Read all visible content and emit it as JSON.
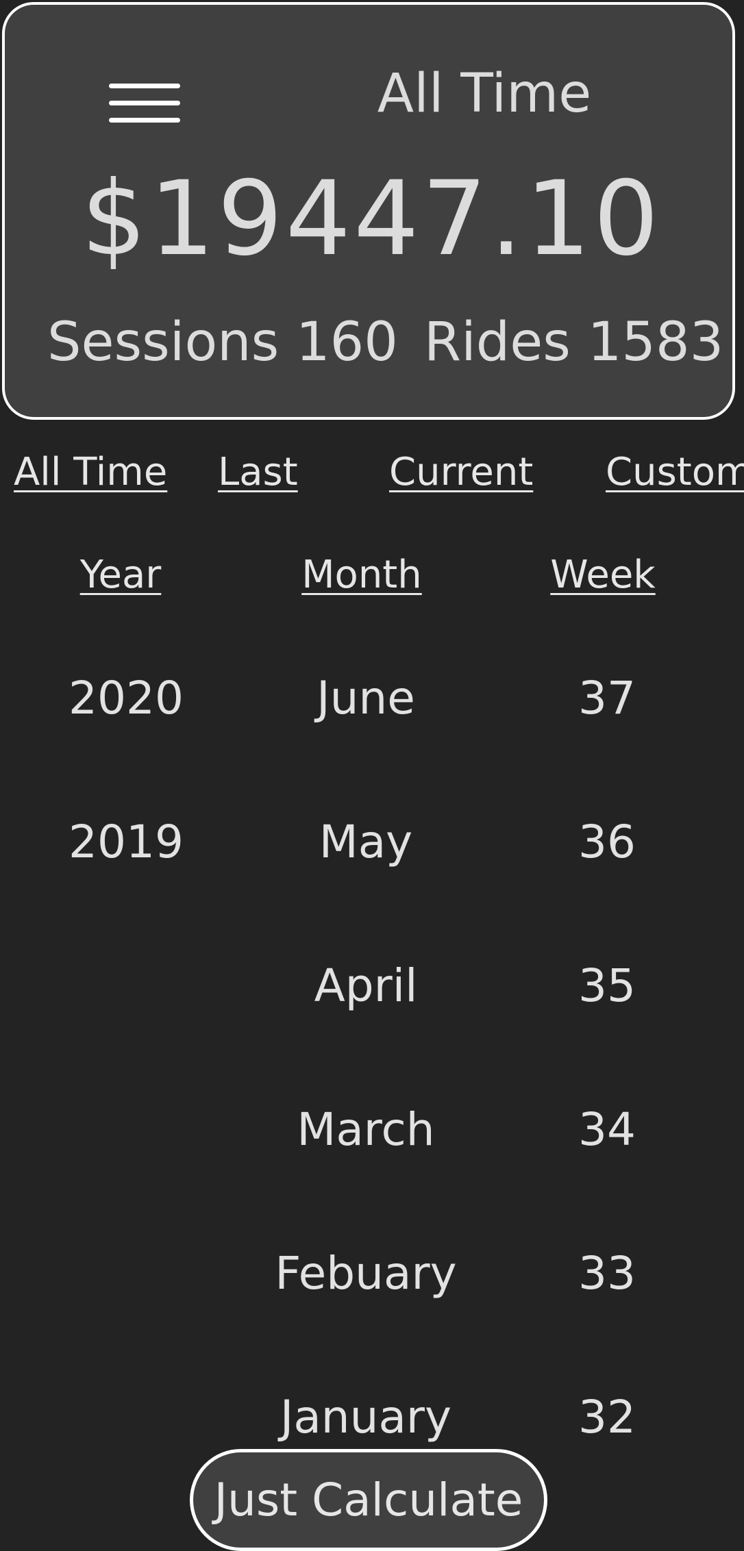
{
  "header": {
    "menu_icon": "hamburger-menu-icon",
    "period_title": "All Time",
    "total_amount": "$19447.10",
    "sessions_label": "Sessions 160",
    "rides_label": "Rides 1583"
  },
  "tabs": [
    {
      "label": "All Time"
    },
    {
      "label": "Last"
    },
    {
      "label": "Current"
    },
    {
      "label": "Custom"
    }
  ],
  "columns": {
    "year_label": "Year",
    "month_label": "Month",
    "week_label": "Week"
  },
  "years": [
    "2020",
    "2019"
  ],
  "months": [
    "June",
    "May",
    "April",
    "March",
    "Febuary",
    "January"
  ],
  "weeks": [
    "37",
    "36",
    "35",
    "34",
    "33",
    "32"
  ],
  "footer": {
    "calculate_button": "Just Calculate"
  },
  "colors": {
    "background": "#232323",
    "card": "#404040",
    "border": "#ffffff",
    "text": "#dcdcdc"
  }
}
